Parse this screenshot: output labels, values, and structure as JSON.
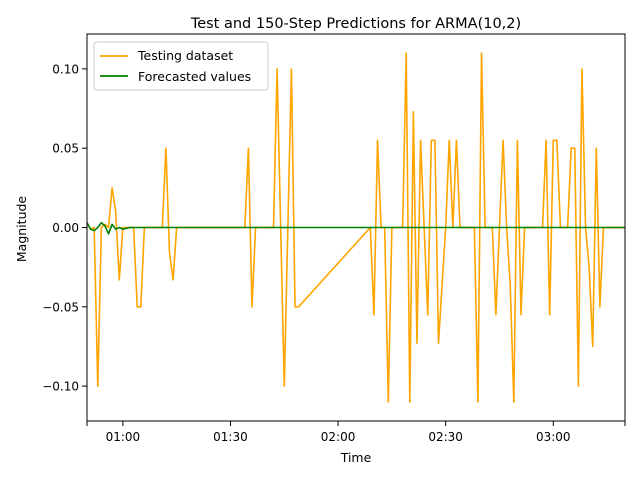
{
  "chart_data": {
    "type": "line",
    "title": "Test and 150-Step Predictions for ARMA(10,2)",
    "xlabel": "Time",
    "ylabel": "Magnitude",
    "x_ticks": [
      "00:50",
      "01:00",
      "01:30",
      "02:00",
      "02:30",
      "03:00",
      "03:20"
    ],
    "x_tick_labels": [
      "",
      "01:00",
      "01:30",
      "02:00",
      "02:30",
      "03:00",
      ""
    ],
    "y_ticks": [
      0.1,
      0.05,
      0.0,
      -0.05,
      -0.1
    ],
    "y_tick_labels": [
      "0.10",
      "0.05",
      "0.00",
      "−0.05",
      "−0.10"
    ],
    "xlim": [
      "00:50",
      "03:20"
    ],
    "ylim": [
      -0.122,
      0.122
    ],
    "legend": {
      "position": "top-left"
    },
    "grid": false,
    "series": [
      {
        "name": "Testing dataset",
        "color": "#ffa500",
        "x": [
          "00:50",
          "00:51",
          "00:52",
          "00:53",
          "00:54",
          "00:55",
          "00:56",
          "00:57",
          "00:58",
          "00:59",
          "01:00",
          "01:01",
          "01:02",
          "01:03",
          "01:04",
          "01:05",
          "01:06",
          "01:07",
          "01:08",
          "01:09",
          "01:10",
          "01:11",
          "01:12",
          "01:13",
          "01:14",
          "01:15",
          "01:34",
          "01:35",
          "01:36",
          "01:37",
          "01:42",
          "01:43",
          "01:44",
          "01:45",
          "01:46",
          "01:47",
          "01:48",
          "01:49",
          "02:09",
          "02:10",
          "02:11",
          "02:12",
          "02:13",
          "02:14",
          "02:15",
          "02:18",
          "02:19",
          "02:20",
          "02:21",
          "02:22",
          "02:23",
          "02:24",
          "02:25",
          "02:26",
          "02:27",
          "02:28",
          "02:29",
          "02:30",
          "02:31",
          "02:32",
          "02:33",
          "02:34",
          "02:38",
          "02:39",
          "02:40",
          "02:41",
          "02:42",
          "02:43",
          "02:44",
          "02:45",
          "02:46",
          "02:47",
          "02:48",
          "02:49",
          "02:50",
          "02:51",
          "02:52",
          "02:53",
          "02:57",
          "02:58",
          "02:59",
          "03:00",
          "03:01",
          "03:02",
          "03:03",
          "03:04",
          "03:05",
          "03:06",
          "03:07",
          "03:08",
          "03:09",
          "03:10",
          "03:11",
          "03:12",
          "03:13",
          "03:14",
          "03:15",
          "03:16",
          "03:17",
          "03:18",
          "03:19",
          "03:20"
        ],
        "y": [
          0.003,
          -0.001,
          0.0,
          -0.1,
          0.0,
          0.002,
          0.0,
          0.025,
          0.01,
          -0.033,
          0.0,
          0.0,
          0.0,
          0.0,
          -0.05,
          -0.05,
          0.0,
          0.0,
          0.0,
          0.0,
          0.0,
          0.0,
          0.05,
          -0.016,
          -0.033,
          0.0,
          0.0,
          0.05,
          -0.05,
          0.0,
          0.0,
          0.1,
          0.0,
          -0.1,
          0.0,
          0.1,
          -0.05,
          -0.05,
          0.0,
          -0.055,
          0.055,
          0.0,
          0.0,
          -0.11,
          0.0,
          0.0,
          0.11,
          -0.11,
          0.073,
          -0.073,
          0.055,
          0.0,
          -0.055,
          0.055,
          0.055,
          -0.073,
          -0.036,
          0.0,
          0.055,
          0.0,
          0.055,
          0.0,
          0.0,
          -0.11,
          0.11,
          0.0,
          0.0,
          0.0,
          -0.055,
          0.0,
          0.055,
          0.0,
          -0.036,
          -0.11,
          0.055,
          -0.055,
          0.0,
          0.0,
          0.0,
          0.055,
          -0.055,
          0.055,
          0.055,
          0.0,
          0.0,
          0.0,
          0.05,
          0.05,
          -0.1,
          0.1,
          0.0,
          -0.025,
          -0.075,
          0.05,
          -0.05,
          0.0,
          0.0,
          0.0,
          0.0,
          0.0,
          0.0,
          0.0
        ]
      },
      {
        "name": "Forecasted values",
        "color": "#008000",
        "x": [
          "00:50",
          "00:51",
          "00:52",
          "00:53",
          "00:54",
          "00:55",
          "00:56",
          "00:57",
          "00:58",
          "00:59",
          "01:00",
          "01:02",
          "03:20"
        ],
        "y": [
          0.003,
          -0.001,
          -0.002,
          0.0,
          0.003,
          0.001,
          -0.004,
          0.002,
          -0.001,
          0.0,
          -0.001,
          0.0,
          0.0
        ]
      }
    ]
  }
}
